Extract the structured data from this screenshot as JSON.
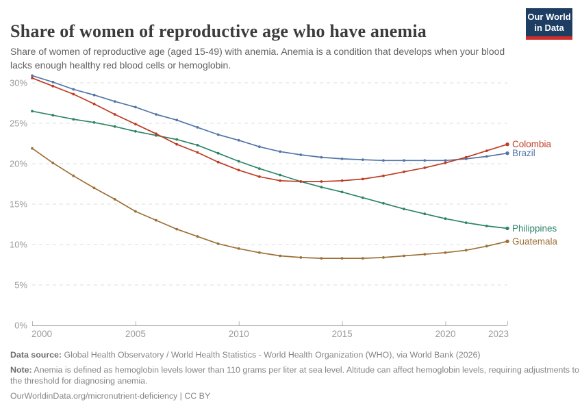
{
  "header": {
    "title": "Share of women of reproductive age who have anemia",
    "subtitle": "Share of women of reproductive age (aged 15-49) with anemia. Anemia is a condition that develops when your blood lacks enough healthy red blood cells or hemoglobin.",
    "logo": {
      "line1": "Our World",
      "line2": "in Data",
      "bg_color": "#1d3d63",
      "accent_color": "#cf2d27"
    }
  },
  "chart_data": {
    "type": "line",
    "title": "Share of women of reproductive age who have anemia",
    "unit": "%",
    "grid": true,
    "legend_position": "right-end-labels",
    "xlim": [
      2000,
      2023
    ],
    "ylim": [
      0,
      31.5
    ],
    "x_ticks": [
      2000,
      2005,
      2010,
      2015,
      2020,
      2023
    ],
    "y_ticks": [
      0,
      5,
      10,
      15,
      20,
      25,
      30
    ],
    "y_tick_suffix": "%",
    "x": [
      2000,
      2001,
      2002,
      2003,
      2004,
      2005,
      2006,
      2007,
      2008,
      2009,
      2010,
      2011,
      2012,
      2013,
      2014,
      2015,
      2016,
      2017,
      2018,
      2019,
      2020,
      2021,
      2022,
      2023
    ],
    "series": [
      {
        "name": "Colombia",
        "color": "#BF3B22",
        "values": [
          30.6,
          29.6,
          28.6,
          27.4,
          26.1,
          24.9,
          23.7,
          22.4,
          21.4,
          20.2,
          19.2,
          18.4,
          17.9,
          17.8,
          17.8,
          17.9,
          18.1,
          18.5,
          19.0,
          19.5,
          20.1,
          20.8,
          21.6,
          22.4
        ]
      },
      {
        "name": "Brazil",
        "color": "#5276A8",
        "values": [
          30.9,
          30.1,
          29.2,
          28.5,
          27.7,
          27.0,
          26.1,
          25.4,
          24.5,
          23.6,
          22.9,
          22.1,
          21.5,
          21.1,
          20.8,
          20.6,
          20.5,
          20.4,
          20.4,
          20.4,
          20.4,
          20.6,
          20.9,
          21.3
        ]
      },
      {
        "name": "Philippines",
        "color": "#2C8465",
        "values": [
          26.5,
          26.0,
          25.5,
          25.1,
          24.6,
          24.0,
          23.5,
          23.0,
          22.3,
          21.3,
          20.3,
          19.4,
          18.6,
          17.8,
          17.1,
          16.5,
          15.8,
          15.1,
          14.4,
          13.8,
          13.2,
          12.7,
          12.3,
          12.0
        ]
      },
      {
        "name": "Guatemala",
        "color": "#9C7037",
        "values": [
          21.9,
          20.1,
          18.5,
          17.0,
          15.6,
          14.1,
          13.0,
          11.9,
          11.0,
          10.1,
          9.5,
          9.0,
          8.6,
          8.4,
          8.3,
          8.3,
          8.3,
          8.4,
          8.6,
          8.8,
          9.0,
          9.3,
          9.8,
          10.4
        ]
      }
    ]
  },
  "footer": {
    "datasource_label": "Data source:",
    "datasource_text": " Global Health Observatory / World Health Statistics - World Health Organization (WHO), via World Bank (2026)",
    "note_label": "Note:",
    "note_text": " Anemia is defined as hemoglobin levels lower than 110 grams per liter at sea level. Altitude can affect hemoglobin levels, requiring adjustments to the threshold for diagnosing anemia.",
    "url_text": "OurWorldinData.org/micronutrient-deficiency | CC BY"
  }
}
